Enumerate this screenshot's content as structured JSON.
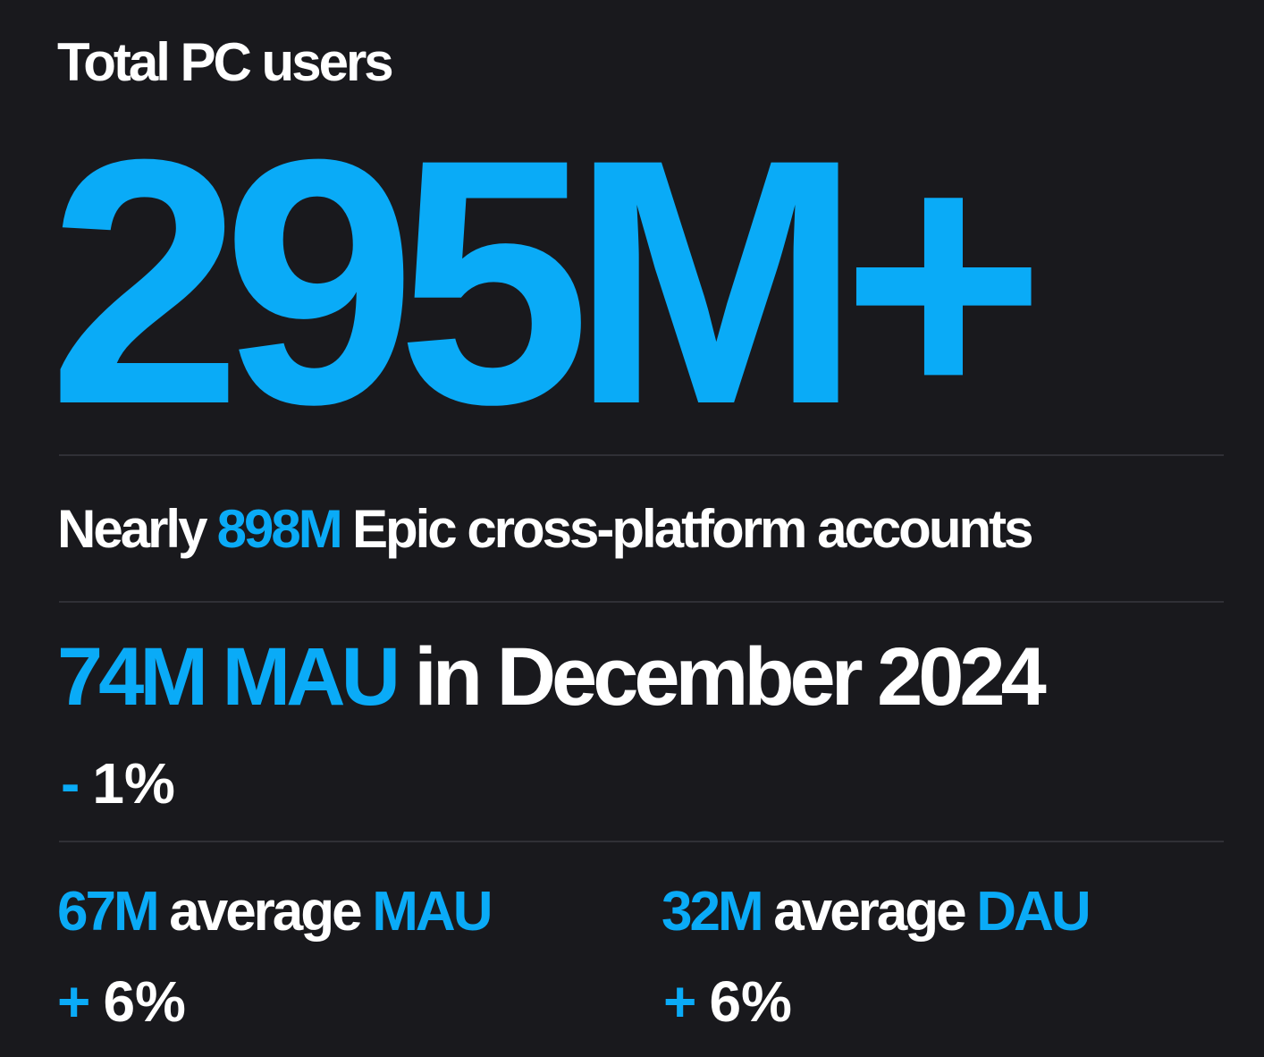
{
  "heading": "Total PC users",
  "big_number": "295M+",
  "accounts": {
    "prefix": "Nearly",
    "value": "898M",
    "suffix": "Epic cross-platform accounts"
  },
  "mau_month": {
    "value": "74M MAU",
    "suffix": "in December 2024",
    "change_sign": "-",
    "change_value": "1%"
  },
  "stats": [
    {
      "value": "67M",
      "middle": "average",
      "metric": "MAU",
      "change_sign": "+",
      "change_value": "6%"
    },
    {
      "value": "32M",
      "middle": "average",
      "metric": "DAU",
      "change_sign": "+",
      "change_value": "6%"
    }
  ],
  "colors": {
    "background": "#19191d",
    "accent": "#0aabf7",
    "text": "#ffffff",
    "divider": "#303036"
  }
}
